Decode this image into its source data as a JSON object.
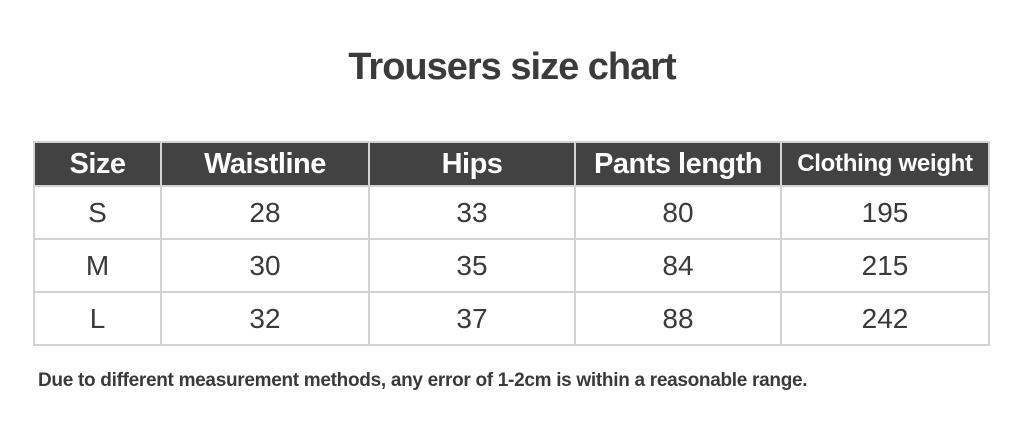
{
  "title": "Trousers size chart",
  "chart_data": {
    "type": "table",
    "title": "Trousers size chart",
    "headers": [
      "Size",
      "Waistline",
      "Hips",
      "Pants length",
      "Clothing weight"
    ],
    "rows": [
      [
        "S",
        "28",
        "33",
        "80",
        "195"
      ],
      [
        "M",
        "30",
        "35",
        "84",
        "215"
      ],
      [
        "L",
        "32",
        "37",
        "88",
        "242"
      ]
    ]
  },
  "note": "Due to different measurement methods, any error of 1-2cm is within a reasonable range.",
  "colors": {
    "page_bg": "#ffffff",
    "title_text": "#3b3b3b",
    "header_bg": "#424242",
    "header_text": "#ffffff",
    "body_text": "#3a3a3a",
    "border": "#d2d2d2"
  }
}
